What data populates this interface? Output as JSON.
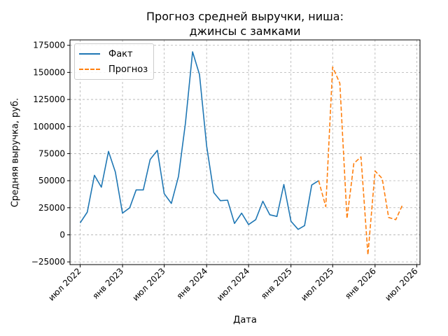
{
  "chart_data": {
    "type": "line",
    "title_line1": "Прогноз средней выручки, ниша:",
    "title_line2": "джинсы с замками",
    "xlabel": "Дата",
    "ylabel": "Средняя выручка, руб.",
    "xlim": [
      "2022-05-18",
      "2026-07-15"
    ],
    "ylim": [
      -27500,
      180000
    ],
    "x_ticks": [
      {
        "date": "2022-07-01",
        "label": "июл 2022"
      },
      {
        "date": "2023-01-01",
        "label": "янв 2023"
      },
      {
        "date": "2023-07-01",
        "label": "июл 2023"
      },
      {
        "date": "2024-01-01",
        "label": "янв 2024"
      },
      {
        "date": "2024-07-01",
        "label": "июл 2024"
      },
      {
        "date": "2025-01-01",
        "label": "янв 2025"
      },
      {
        "date": "2025-07-01",
        "label": "июл 2025"
      },
      {
        "date": "2026-01-01",
        "label": "янв 2026"
      },
      {
        "date": "2026-07-01",
        "label": "июл 2026"
      }
    ],
    "y_ticks": [
      {
        "value": -25000,
        "label": "−25000"
      },
      {
        "value": 0,
        "label": "0"
      },
      {
        "value": 25000,
        "label": "25000"
      },
      {
        "value": 50000,
        "label": "50000"
      },
      {
        "value": 75000,
        "label": "75000"
      },
      {
        "value": 100000,
        "label": "100000"
      },
      {
        "value": 125000,
        "label": "125000"
      },
      {
        "value": 150000,
        "label": "150000"
      },
      {
        "value": 175000,
        "label": "175000"
      }
    ],
    "grid": true,
    "legend_position": "top-left",
    "series": [
      {
        "name": "Факт",
        "color": "#1f77b4",
        "style": "solid",
        "points": [
          [
            "2022-07-01",
            11000
          ],
          [
            "2022-08-01",
            21000
          ],
          [
            "2022-09-01",
            55000
          ],
          [
            "2022-10-01",
            44000
          ],
          [
            "2022-11-01",
            77000
          ],
          [
            "2022-12-01",
            58000
          ],
          [
            "2023-01-01",
            20000
          ],
          [
            "2023-02-01",
            25000
          ],
          [
            "2023-03-01",
            41500
          ],
          [
            "2023-04-01",
            41500
          ],
          [
            "2023-05-01",
            69500
          ],
          [
            "2023-06-01",
            78000
          ],
          [
            "2023-07-01",
            38000
          ],
          [
            "2023-08-01",
            29000
          ],
          [
            "2023-09-01",
            54000
          ],
          [
            "2023-10-01",
            103000
          ],
          [
            "2023-11-01",
            169000
          ],
          [
            "2023-12-01",
            148000
          ],
          [
            "2024-01-01",
            82000
          ],
          [
            "2024-02-01",
            39000
          ],
          [
            "2024-03-01",
            31500
          ],
          [
            "2024-04-01",
            32000
          ],
          [
            "2024-05-01",
            10500
          ],
          [
            "2024-06-01",
            20000
          ],
          [
            "2024-07-01",
            9500
          ],
          [
            "2024-08-01",
            14000
          ],
          [
            "2024-09-01",
            31000
          ],
          [
            "2024-10-01",
            18500
          ],
          [
            "2024-11-01",
            17000
          ],
          [
            "2024-12-01",
            46500
          ],
          [
            "2025-01-01",
            12500
          ],
          [
            "2025-02-01",
            5000
          ],
          [
            "2025-03-01",
            8500
          ],
          [
            "2025-04-01",
            46000
          ],
          [
            "2025-05-01",
            50000
          ]
        ]
      },
      {
        "name": "Прогноз",
        "color": "#ff7f0e",
        "style": "dashed",
        "points": [
          [
            "2025-05-01",
            50000
          ],
          [
            "2025-06-01",
            26000
          ],
          [
            "2025-07-01",
            155000
          ],
          [
            "2025-08-01",
            140000
          ],
          [
            "2025-09-01",
            15000
          ],
          [
            "2025-10-01",
            66000
          ],
          [
            "2025-11-01",
            72000
          ],
          [
            "2025-12-01",
            -18500
          ],
          [
            "2026-01-01",
            59000
          ],
          [
            "2026-02-01",
            52000
          ],
          [
            "2026-03-01",
            16000
          ],
          [
            "2026-04-01",
            14000
          ],
          [
            "2026-05-01",
            28000
          ]
        ]
      }
    ]
  }
}
